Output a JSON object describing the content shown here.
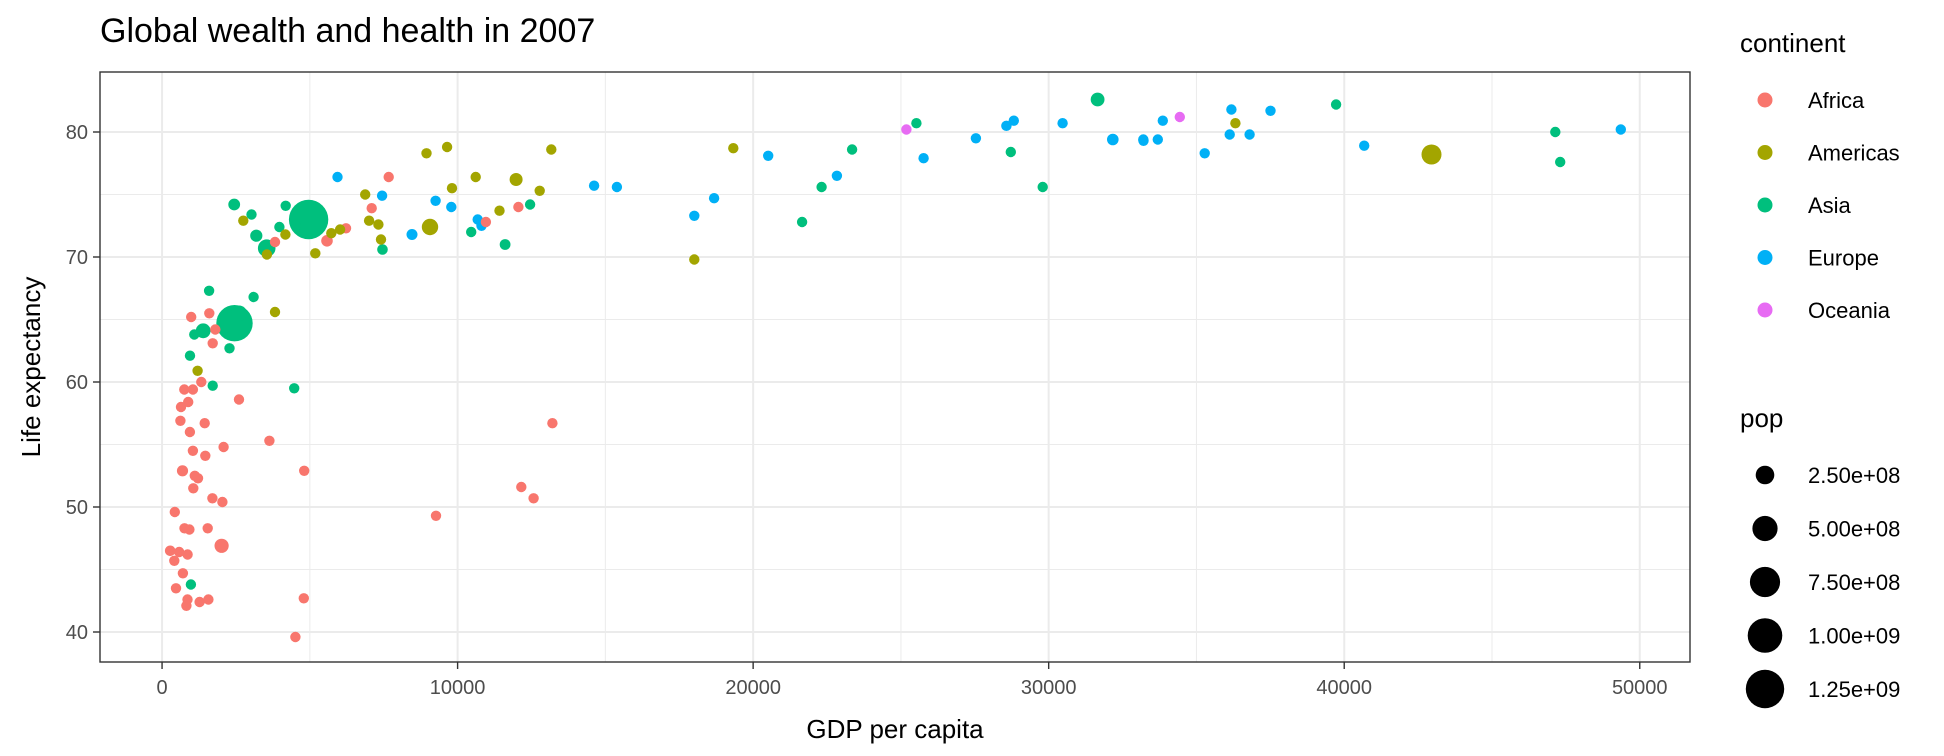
{
  "chart_data": {
    "type": "scatter",
    "title": "Global wealth and health in 2007",
    "xlabel": "GDP per capita",
    "ylabel": "Life expectancy",
    "xlim": [
      -2100,
      51700
    ],
    "ylim": [
      37.6,
      84.8
    ],
    "x_ticks": [
      0,
      10000,
      20000,
      30000,
      40000,
      50000
    ],
    "x_tick_labels": [
      "0",
      "10000",
      "20000",
      "30000",
      "40000",
      "50000"
    ],
    "y_ticks": [
      40,
      50,
      60,
      70,
      80
    ],
    "y_tick_labels": [
      "40",
      "50",
      "60",
      "70",
      "80"
    ],
    "grid": true,
    "legend_position": "right",
    "color_legend": {
      "title": "continent",
      "entries": [
        {
          "label": "Africa",
          "color": "#F8766D"
        },
        {
          "label": "Americas",
          "color": "#A3A500"
        },
        {
          "label": "Asia",
          "color": "#00BF7D"
        },
        {
          "label": "Europe",
          "color": "#00B0F6"
        },
        {
          "label": "Oceania",
          "color": "#E76BF3"
        }
      ]
    },
    "size_legend": {
      "title": "pop",
      "entries": [
        {
          "label": "2.50e+08",
          "value": 250000000
        },
        {
          "label": "5.00e+08",
          "value": 500000000
        },
        {
          "label": "7.50e+08",
          "value": 750000000
        },
        {
          "label": "1.00e+09",
          "value": 1000000000
        },
        {
          "label": "1.25e+09",
          "value": 1250000000
        }
      ]
    },
    "series": [
      {
        "name": "Africa",
        "points": [
          [
            6223,
            72.3,
            33000000
          ],
          [
            4797,
            42.7,
            12000000
          ],
          [
            1441,
            56.7,
            8000000
          ],
          [
            12570,
            50.7,
            1600000
          ],
          [
            1217,
            52.3,
            14000000
          ],
          [
            430,
            49.6,
            8000000
          ],
          [
            2042,
            50.4,
            17000000
          ],
          [
            706,
            44.7,
            4000000
          ],
          [
            1704,
            50.7,
            10000000
          ],
          [
            986,
            65.2,
            700000
          ],
          [
            277,
            46.5,
            64000000
          ],
          [
            3633,
            55.3,
            3800000
          ],
          [
            1545,
            48.3,
            18000000
          ],
          [
            2082,
            54.8,
            500000
          ],
          [
            5581,
            71.3,
            80000000
          ],
          [
            12154,
            51.6,
            550000
          ],
          [
            641,
            58.0,
            4900000
          ],
          [
            690,
            52.9,
            76000000
          ],
          [
            13206,
            56.7,
            1450000
          ],
          [
            753,
            59.4,
            1700000
          ],
          [
            1327,
            60.0,
            23000000
          ],
          [
            943,
            56.0,
            9900000
          ],
          [
            579,
            46.4,
            1500000
          ],
          [
            1463,
            54.1,
            35000000
          ],
          [
            1569,
            42.6,
            2000000
          ],
          [
            415,
            45.7,
            3200000
          ],
          [
            12057,
            74.0,
            6000000
          ],
          [
            1045,
            59.4,
            19000000
          ],
          [
            759,
            48.3,
            13000000
          ],
          [
            1042,
            54.5,
            12000000
          ],
          [
            1803,
            64.2,
            3300000
          ],
          [
            10957,
            72.8,
            1250000
          ],
          [
            3820,
            71.2,
            33000000
          ],
          [
            824,
            42.1,
            19000000
          ],
          [
            4811,
            52.9,
            2000000
          ],
          [
            620,
            56.9,
            12900000
          ],
          [
            2014,
            46.9,
            135000000
          ],
          [
            7670,
            76.4,
            800000
          ],
          [
            863,
            46.2,
            8900000
          ],
          [
            1598,
            65.5,
            200000
          ],
          [
            1712,
            63.1,
            12000000
          ],
          [
            862,
            42.6,
            6100000
          ],
          [
            926,
            48.2,
            9100000
          ],
          [
            9270,
            49.3,
            43000000
          ],
          [
            2602,
            58.6,
            42000000
          ],
          [
            4513,
            39.6,
            1100000
          ],
          [
            1107,
            52.5,
            38000000
          ],
          [
            883,
            58.4,
            5700000
          ],
          [
            7093,
            73.9,
            10000000
          ],
          [
            1056,
            51.5,
            29000000
          ],
          [
            1271,
            42.4,
            11700000
          ],
          [
            470,
            43.5,
            12300000
          ]
        ]
      },
      {
        "name": "Americas",
        "points": [
          [
            12779,
            75.3,
            40000000
          ],
          [
            3822,
            65.6,
            9100000
          ],
          [
            9066,
            72.4,
            190000000
          ],
          [
            36319,
            80.7,
            33000000
          ],
          [
            13172,
            78.6,
            16000000
          ],
          [
            7007,
            72.9,
            44000000
          ],
          [
            9645,
            78.8,
            4100000
          ],
          [
            8948,
            78.3,
            11400000
          ],
          [
            6025,
            72.2,
            9300000
          ],
          [
            6873,
            75.0,
            13800000
          ],
          [
            5728,
            71.9,
            6900000
          ],
          [
            5186,
            70.3,
            12600000
          ],
          [
            1202,
            60.9,
            8500000
          ],
          [
            3548,
            70.2,
            7500000
          ],
          [
            7321,
            72.6,
            2800000
          ],
          [
            11978,
            76.2,
            108000000
          ],
          [
            2749,
            72.9,
            5700000
          ],
          [
            9809,
            75.5,
            3200000
          ],
          [
            4173,
            71.8,
            6700000
          ],
          [
            7409,
            71.4,
            28700000
          ],
          [
            19329,
            78.7,
            4000000
          ],
          [
            18009,
            69.8,
            1100000
          ],
          [
            42952,
            78.2,
            301000000
          ],
          [
            10611,
            76.4,
            3500000
          ],
          [
            11416,
            73.7,
            26000000
          ]
        ]
      },
      {
        "name": "Asia",
        "points": [
          [
            975,
            43.8,
            32000000
          ],
          [
            29796,
            75.6,
            700000
          ],
          [
            1391,
            64.1,
            150000000
          ],
          [
            1714,
            59.7,
            14000000
          ],
          [
            4959,
            73.0,
            1319000000
          ],
          [
            39725,
            82.2,
            6900000
          ],
          [
            2452,
            64.7,
            1110000000
          ],
          [
            3541,
            70.7,
            223000000
          ],
          [
            11606,
            71.0,
            69000000
          ],
          [
            4471,
            59.5,
            27000000
          ],
          [
            25523,
            80.7,
            6400000
          ],
          [
            31656,
            82.6,
            127000000
          ],
          [
            4519,
            72.5,
            6000000
          ],
          [
            1593,
            67.3,
            23000000
          ],
          [
            23348,
            78.6,
            49000000
          ],
          [
            47307,
            77.6,
            2500000
          ],
          [
            10461,
            72.0,
            3900000
          ],
          [
            12452,
            74.2,
            24000000
          ],
          [
            3096,
            66.8,
            2900000
          ],
          [
            944,
            62.1,
            47000000
          ],
          [
            1091,
            63.8,
            28900000
          ],
          [
            22316,
            75.6,
            3200000
          ],
          [
            2606,
            65.5,
            169000000
          ],
          [
            3190,
            71.7,
            91000000
          ],
          [
            21655,
            72.8,
            27600000
          ],
          [
            47143,
            80.0,
            4600000
          ],
          [
            3970,
            72.4,
            20300000
          ],
          [
            4185,
            74.1,
            19300000
          ],
          [
            28718,
            78.4,
            23200000
          ],
          [
            7458,
            70.6,
            65000000
          ],
          [
            2442,
            74.2,
            85000000
          ],
          [
            3025,
            73.4,
            4000000
          ],
          [
            2281,
            62.7,
            22200000
          ]
        ]
      },
      {
        "name": "Europe",
        "points": [
          [
            5937,
            76.4,
            3600000
          ],
          [
            36126,
            79.8,
            8200000
          ],
          [
            33693,
            79.4,
            10400000
          ],
          [
            7446,
            74.9,
            4600000
          ],
          [
            10681,
            73.0,
            7300000
          ],
          [
            14619,
            75.7,
            4500000
          ],
          [
            22833,
            76.5,
            10200000
          ],
          [
            35278,
            78.3,
            5500000
          ],
          [
            33207,
            79.3,
            5200000
          ],
          [
            30470,
            80.7,
            61000000
          ],
          [
            32170,
            79.4,
            82000000
          ],
          [
            27538,
            79.5,
            10700000
          ],
          [
            18009,
            73.3,
            9900000
          ],
          [
            36181,
            81.8,
            300000
          ],
          [
            40676,
            78.9,
            4100000
          ],
          [
            28570,
            80.5,
            58000000
          ],
          [
            9254,
            74.5,
            700000
          ],
          [
            36798,
            79.8,
            16600000
          ],
          [
            49357,
            80.2,
            4600000
          ],
          [
            15390,
            75.6,
            38500000
          ],
          [
            20510,
            78.1,
            10600000
          ],
          [
            10808,
            72.5,
            22300000
          ],
          [
            9787,
            74.0,
            10200000
          ],
          [
            18678,
            74.7,
            5400000
          ],
          [
            25768,
            77.9,
            2000000
          ],
          [
            28821,
            80.9,
            40400000
          ],
          [
            33860,
            80.9,
            9000000
          ],
          [
            37506,
            81.7,
            7500000
          ],
          [
            8458,
            71.8,
            71000000
          ],
          [
            33203,
            79.4,
            60800000
          ]
        ]
      },
      {
        "name": "Oceania",
        "points": [
          [
            34435,
            81.2,
            20400000
          ],
          [
            25185,
            80.2,
            4100000
          ]
        ]
      }
    ]
  }
}
